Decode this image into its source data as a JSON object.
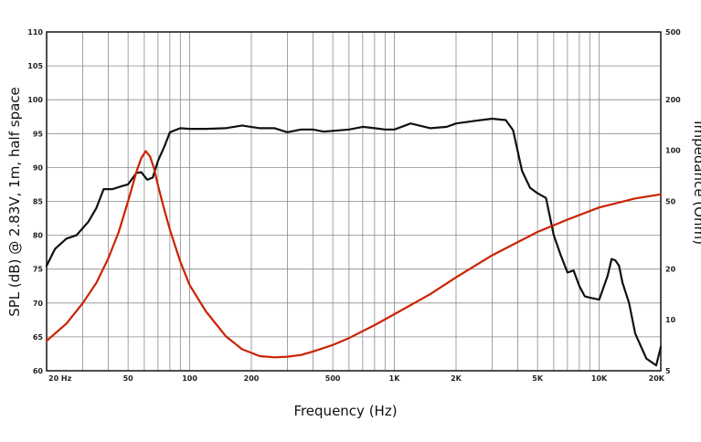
{
  "chart_data": {
    "type": "line",
    "xlabel": "Frequency (Hz)",
    "ylabel": "SPL (dB) @ 2.83V, 1m, half space",
    "y2label": "Impedance (Ohm)",
    "xscale": "log",
    "xlim": [
      20,
      20000
    ],
    "ylim": [
      60,
      110
    ],
    "y2lim": [
      5,
      500
    ],
    "y2scale": "log",
    "grid": true,
    "x_ticks": [
      {
        "value": 20,
        "label": "20 Hz"
      },
      {
        "value": 50,
        "label": "50"
      },
      {
        "value": 100,
        "label": "100"
      },
      {
        "value": 200,
        "label": "200"
      },
      {
        "value": 500,
        "label": "500"
      },
      {
        "value": 1000,
        "label": "1K"
      },
      {
        "value": 2000,
        "label": "2K"
      },
      {
        "value": 5000,
        "label": "5K"
      },
      {
        "value": 10000,
        "label": "10K"
      },
      {
        "value": 20000,
        "label": "20K"
      }
    ],
    "y_ticks": [
      {
        "value": 110,
        "label": "110"
      },
      {
        "value": 105,
        "label": "105"
      },
      {
        "value": 100,
        "label": "100"
      },
      {
        "value": 95,
        "label": "95"
      },
      {
        "value": 90,
        "label": "90"
      },
      {
        "value": 85,
        "label": "85"
      },
      {
        "value": 80,
        "label": "80"
      },
      {
        "value": 75,
        "label": "75"
      },
      {
        "value": 70,
        "label": "70"
      },
      {
        "value": 65,
        "label": "65"
      },
      {
        "value": 60,
        "label": "60"
      }
    ],
    "y2_ticks": [
      {
        "value": 500,
        "label": "500"
      },
      {
        "value": 200,
        "label": "200"
      },
      {
        "value": 100,
        "label": "100"
      },
      {
        "value": 50,
        "label": "50"
      },
      {
        "value": 20,
        "label": "20"
      },
      {
        "value": 10,
        "label": "10"
      },
      {
        "value": 5,
        "label": "5"
      }
    ],
    "series": [
      {
        "axis": "left",
        "color": "#111111",
        "x": [
          20,
          22,
          25,
          28,
          32,
          35,
          38,
          42,
          46,
          50,
          55,
          58,
          62,
          66,
          70,
          75,
          80,
          90,
          100,
          120,
          150,
          180,
          220,
          260,
          300,
          350,
          400,
          450,
          500,
          600,
          700,
          800,
          900,
          1000,
          1200,
          1500,
          1800,
          2000,
          2500,
          3000,
          3500,
          3800,
          4200,
          4600,
          5000,
          5500,
          6000,
          6500,
          7000,
          7500,
          8000,
          8500,
          9000,
          10000,
          11000,
          11500,
          12000,
          12500,
          13000,
          14000,
          15000,
          17000,
          19000,
          20000
        ],
        "y": [
          75.5,
          78,
          79.5,
          80,
          82,
          84,
          86.8,
          86.8,
          87.2,
          87.5,
          89.2,
          89.3,
          88.2,
          88.5,
          91,
          93,
          95.2,
          95.8,
          95.7,
          95.7,
          95.8,
          96.2,
          95.8,
          95.8,
          95.2,
          95.6,
          95.6,
          95.3,
          95.4,
          95.6,
          96,
          95.8,
          95.6,
          95.6,
          96.5,
          95.8,
          96,
          96.5,
          96.9,
          97.2,
          97,
          95.5,
          89.5,
          87,
          86.2,
          85.5,
          80,
          77,
          74.5,
          74.8,
          72.5,
          71,
          70.8,
          70.5,
          74,
          76.5,
          76.3,
          75.5,
          73,
          70,
          65.5,
          61.8,
          60.8,
          63.5
        ]
      },
      {
        "axis": "right",
        "color": "#cc2200",
        "x": [
          20,
          25,
          30,
          35,
          40,
          45,
          50,
          55,
          58,
          61,
          64,
          67,
          70,
          75,
          80,
          90,
          100,
          120,
          150,
          180,
          220,
          260,
          300,
          350,
          400,
          500,
          600,
          800,
          1000,
          1500,
          2000,
          3000,
          5000,
          7000,
          10000,
          15000,
          20000
        ],
        "y": [
          7.5,
          9.5,
          12.5,
          16.5,
          23,
          33,
          50,
          75,
          90,
          99,
          92,
          78,
          62,
          45,
          34,
          22,
          16,
          11.2,
          8,
          6.7,
          6.1,
          6,
          6.05,
          6.2,
          6.5,
          7.1,
          7.8,
          9.3,
          10.8,
          14.2,
          17.8,
          24,
          33,
          39,
          46,
          52,
          55
        ]
      }
    ]
  }
}
